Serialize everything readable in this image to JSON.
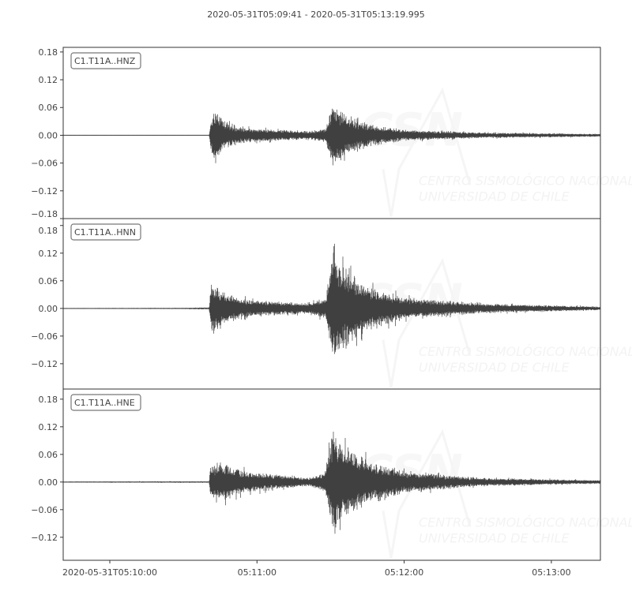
{
  "chart_data": {
    "type": "line",
    "title": "2020-05-31T05:09:41  -  2020-05-31T05:13:19.995",
    "x_range": [
      "2020-05-31T05:09:41",
      "2020-05-31T05:13:19.995"
    ],
    "x_ticks": [
      {
        "time_s": 19,
        "label": "2020-05-31T05:10:00"
      },
      {
        "time_s": 79,
        "label": "05:11:00"
      },
      {
        "time_s": 139,
        "label": "05:12:00"
      },
      {
        "time_s": 199,
        "label": "05:13:00"
      }
    ],
    "grid": false,
    "line_color": "#404040",
    "watermark": {
      "logo": "CSN",
      "line1": "CENTRO SISMOLÓGICO NACIONAL",
      "line2": "UNIVERSIDAD DE CHILE"
    },
    "series": [
      {
        "name": "C1.T11A..HNZ",
        "ylim": [
          -0.18,
          0.19
        ],
        "y_ticks": [
          "0.18",
          "0.12",
          "0.06",
          "0.00",
          "−0.06",
          "−0.12",
          "−0.18"
        ],
        "y_tick_values": [
          0.18,
          0.12,
          0.06,
          0.0,
          -0.06,
          -0.12,
          -0.18
        ],
        "amplitude_envelope_s": [
          [
            0,
            0.0006
          ],
          [
            59.5,
            0.0006
          ],
          [
            60,
            0.04
          ],
          [
            62,
            0.08
          ],
          [
            66,
            0.035
          ],
          [
            75,
            0.02
          ],
          [
            100,
            0.012
          ],
          [
            107,
            0.02
          ],
          [
            110,
            0.095
          ],
          [
            115,
            0.06
          ],
          [
            125,
            0.03
          ],
          [
            140,
            0.015
          ],
          [
            170,
            0.008
          ],
          [
            219,
            0.004
          ]
        ]
      },
      {
        "name": "C1.T11A..HNN",
        "ylim": [
          -0.175,
          0.195
        ],
        "y_ticks": [
          "0.18",
          "0.12",
          "0.06",
          "0.00",
          "−0.06",
          "−0.12"
        ],
        "y_tick_values": [
          0.18,
          0.12,
          0.06,
          0.0,
          -0.06,
          -0.12
        ],
        "amplitude_envelope_s": [
          [
            0,
            0.001
          ],
          [
            48,
            0.0015
          ],
          [
            59.5,
            0.003
          ],
          [
            60.5,
            0.085
          ],
          [
            65,
            0.05
          ],
          [
            75,
            0.025
          ],
          [
            100,
            0.015
          ],
          [
            107,
            0.03
          ],
          [
            110,
            0.175
          ],
          [
            114,
            0.12
          ],
          [
            125,
            0.06
          ],
          [
            140,
            0.03
          ],
          [
            170,
            0.014
          ],
          [
            219,
            0.005
          ]
        ]
      },
      {
        "name": "C1.T11A..HNE",
        "ylim": [
          -0.17,
          0.202
        ],
        "y_ticks": [
          "0.18",
          "0.12",
          "0.06",
          "0.00",
          "−0.06",
          "−0.12"
        ],
        "y_tick_values": [
          0.18,
          0.12,
          0.06,
          0.0,
          -0.06,
          -0.12
        ],
        "amplitude_envelope_s": [
          [
            0,
            0.0015
          ],
          [
            59.5,
            0.002
          ],
          [
            60,
            0.05
          ],
          [
            65,
            0.055
          ],
          [
            75,
            0.03
          ],
          [
            100,
            0.012
          ],
          [
            107,
            0.03
          ],
          [
            110,
            0.175
          ],
          [
            114,
            0.11
          ],
          [
            125,
            0.06
          ],
          [
            140,
            0.03
          ],
          [
            170,
            0.012
          ],
          [
            219,
            0.005
          ]
        ]
      }
    ]
  }
}
